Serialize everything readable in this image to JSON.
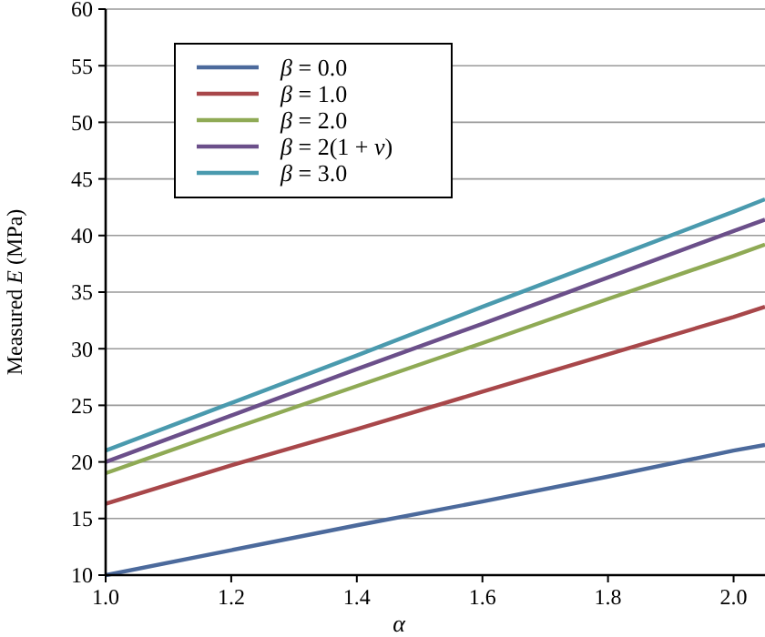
{
  "chart_data": {
    "type": "line",
    "xlabel": "α",
    "ylabel": "Measured E (MPa)",
    "x": [
      1.0,
      1.2,
      1.4,
      1.6,
      1.8,
      2.0,
      2.05
    ],
    "series": [
      {
        "name": "β = 0.0",
        "color": "#4c6a9c",
        "values": [
          10.0,
          12.2,
          14.4,
          16.5,
          18.7,
          21.0,
          21.5
        ]
      },
      {
        "name": "β = 1.0",
        "color": "#a8474a",
        "values": [
          16.3,
          19.7,
          22.9,
          26.2,
          29.5,
          32.8,
          33.7
        ]
      },
      {
        "name": "β = 2.0",
        "color": "#8faa55",
        "values": [
          19.0,
          22.9,
          26.7,
          30.5,
          34.4,
          38.2,
          39.2
        ]
      },
      {
        "name": "β = 2(1 + ν)",
        "color": "#6b4f8a",
        "values": [
          20.0,
          24.1,
          28.2,
          32.2,
          36.3,
          40.4,
          41.4
        ]
      },
      {
        "name": "β = 3.0",
        "color": "#4a9aae",
        "values": [
          21.0,
          25.2,
          29.4,
          33.7,
          37.9,
          42.1,
          43.2
        ]
      }
    ],
    "xlim": [
      1.0,
      2.05
    ],
    "xticks": [
      {
        "value": 1.0,
        "label": "1.0"
      },
      {
        "value": 1.2,
        "label": "1.2"
      },
      {
        "value": 1.4,
        "label": "1.4"
      },
      {
        "value": 1.6,
        "label": "1.6"
      },
      {
        "value": 1.8,
        "label": "1.8"
      },
      {
        "value": 2.0,
        "label": "2.0"
      }
    ],
    "ylim": [
      10,
      60
    ],
    "yticks": [
      10,
      15,
      20,
      25,
      30,
      35,
      40,
      45,
      50,
      55,
      60
    ],
    "grid": "y",
    "legend": "top left",
    "marker": "none",
    "line_style": "solid"
  }
}
